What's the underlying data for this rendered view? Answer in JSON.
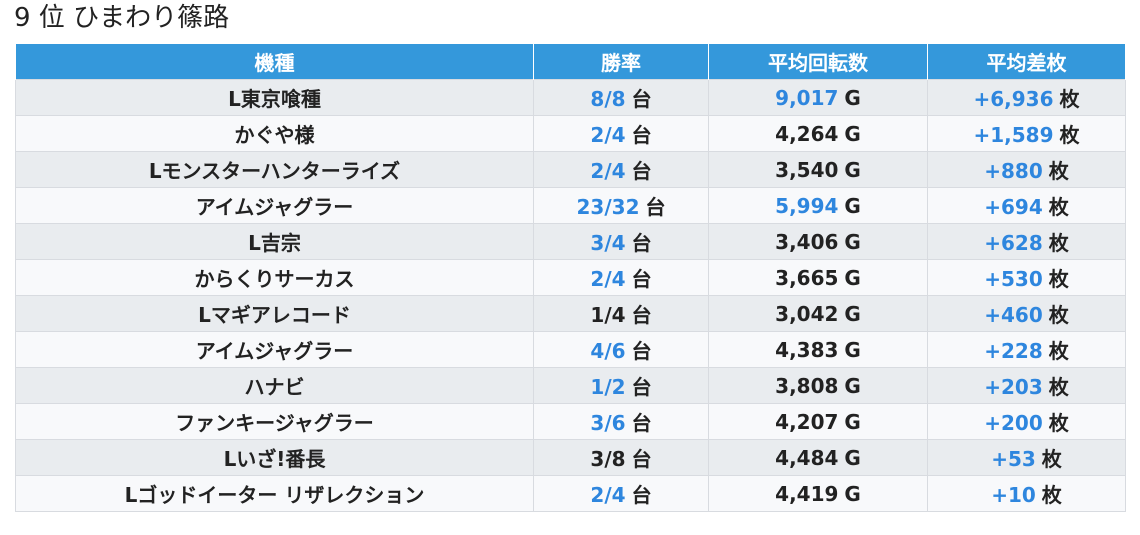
{
  "page_title": "9 位 ひまわり篠路",
  "table": {
    "headers": [
      "機種",
      "勝率",
      "平均回転数",
      "平均差枚"
    ],
    "rows": [
      {
        "machine": "L東京喰種",
        "win_rate": "8/8",
        "win_unit": "台",
        "win_highlight": true,
        "avg_spins": "9,017",
        "spins_unit": "G",
        "spins_highlight": true,
        "avg_diff": "+6,936",
        "diff_unit": "枚",
        "diff_highlight": true
      },
      {
        "machine": "かぐや様",
        "win_rate": "2/4",
        "win_unit": "台",
        "win_highlight": true,
        "avg_spins": "4,264",
        "spins_unit": "G",
        "spins_highlight": false,
        "avg_diff": "+1,589",
        "diff_unit": "枚",
        "diff_highlight": true
      },
      {
        "machine": "Lモンスターハンターライズ",
        "win_rate": "2/4",
        "win_unit": "台",
        "win_highlight": true,
        "avg_spins": "3,540",
        "spins_unit": "G",
        "spins_highlight": false,
        "avg_diff": "+880",
        "diff_unit": "枚",
        "diff_highlight": true
      },
      {
        "machine": "アイムジャグラー",
        "win_rate": "23/32",
        "win_unit": "台",
        "win_highlight": true,
        "avg_spins": "5,994",
        "spins_unit": "G",
        "spins_highlight": true,
        "avg_diff": "+694",
        "diff_unit": "枚",
        "diff_highlight": true
      },
      {
        "machine": "L吉宗",
        "win_rate": "3/4",
        "win_unit": "台",
        "win_highlight": true,
        "avg_spins": "3,406",
        "spins_unit": "G",
        "spins_highlight": false,
        "avg_diff": "+628",
        "diff_unit": "枚",
        "diff_highlight": true
      },
      {
        "machine": "からくりサーカス",
        "win_rate": "2/4",
        "win_unit": "台",
        "win_highlight": true,
        "avg_spins": "3,665",
        "spins_unit": "G",
        "spins_highlight": false,
        "avg_diff": "+530",
        "diff_unit": "枚",
        "diff_highlight": true
      },
      {
        "machine": "Lマギアレコード",
        "win_rate": "1/4",
        "win_unit": "台",
        "win_highlight": false,
        "avg_spins": "3,042",
        "spins_unit": "G",
        "spins_highlight": false,
        "avg_diff": "+460",
        "diff_unit": "枚",
        "diff_highlight": true
      },
      {
        "machine": "アイムジャグラー",
        "win_rate": "4/6",
        "win_unit": "台",
        "win_highlight": true,
        "avg_spins": "4,383",
        "spins_unit": "G",
        "spins_highlight": false,
        "avg_diff": "+228",
        "diff_unit": "枚",
        "diff_highlight": true
      },
      {
        "machine": "ハナビ",
        "win_rate": "1/2",
        "win_unit": "台",
        "win_highlight": true,
        "avg_spins": "3,808",
        "spins_unit": "G",
        "spins_highlight": false,
        "avg_diff": "+203",
        "diff_unit": "枚",
        "diff_highlight": true
      },
      {
        "machine": "ファンキージャグラー",
        "win_rate": "3/6",
        "win_unit": "台",
        "win_highlight": true,
        "avg_spins": "4,207",
        "spins_unit": "G",
        "spins_highlight": false,
        "avg_diff": "+200",
        "diff_unit": "枚",
        "diff_highlight": true
      },
      {
        "machine": "Lいざ!番長",
        "win_rate": "3/8",
        "win_unit": "台",
        "win_highlight": false,
        "avg_spins": "4,484",
        "spins_unit": "G",
        "spins_highlight": false,
        "avg_diff": "+53",
        "diff_unit": "枚",
        "diff_highlight": true
      },
      {
        "machine": "Lゴッドイーター リザレクション",
        "win_rate": "2/4",
        "win_unit": "台",
        "win_highlight": true,
        "avg_spins": "4,419",
        "spins_unit": "G",
        "spins_highlight": false,
        "avg_diff": "+10",
        "diff_unit": "枚",
        "diff_highlight": true
      }
    ]
  },
  "colors": {
    "header_bg": "#3498db",
    "highlight_text": "#2e86de",
    "row_odd": "#e9ecef",
    "row_even": "#f8f9fb"
  }
}
